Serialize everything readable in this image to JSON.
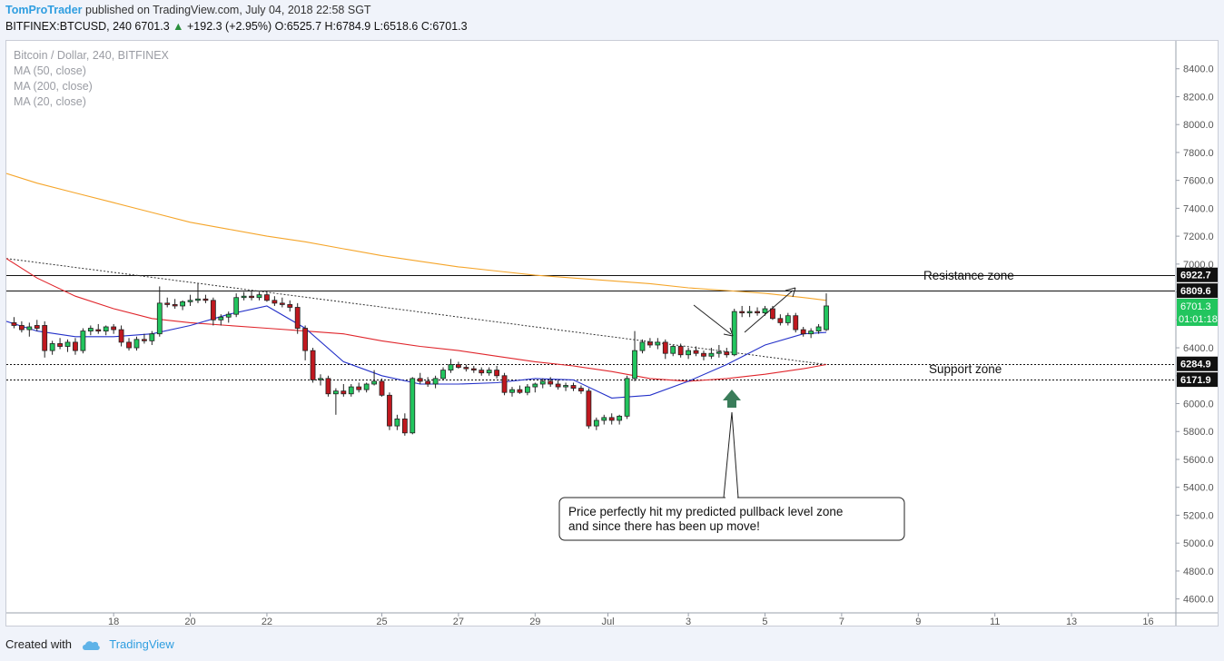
{
  "header": {
    "author": "TomProTrader",
    "published": "published on TradingView.com, July 04, 2018 22:58 SGT",
    "symbol": "BITFINEX:BTCUSD, 240",
    "last": "6701.3",
    "change": "+192.3 (+2.95%)",
    "ohlc": "O:6525.7 H:6784.9 L:6518.6 C:6701.3"
  },
  "legend": {
    "title": "Bitcoin / Dollar, 240, BITFINEX",
    "ma50": "MA (50, close)",
    "ma200": "MA (200, close)",
    "ma20": "MA (20, close)"
  },
  "footer": {
    "created": "Created with",
    "brand": "TradingView"
  },
  "annotations": {
    "resistance": "Resistance zone",
    "support": "Support zone",
    "callout_line1": "Price perfectly hit my predicted pullback level zone",
    "callout_line2": "and since there has been up move!"
  },
  "price_labels": {
    "resistance_top": "6922.7",
    "resistance_bottom": "6809.6",
    "last_price": "6701.3",
    "countdown": "01:01:18",
    "support_top": "6284.9",
    "support_bottom": "6171.9"
  },
  "colors": {
    "up": "#22c55e",
    "down": "#c0181f",
    "ma200": "#f5a52a",
    "ma50": "#e0262c",
    "ma20": "#2431c9",
    "arrow": "#3a7d5a"
  },
  "chart_data": {
    "type": "candlestick",
    "title": "Bitcoin / Dollar, 240, BITFINEX",
    "ylim": [
      4500,
      8600
    ],
    "y_ticks": [
      4600,
      4800,
      5000,
      5200,
      5400,
      5600,
      5800,
      6000,
      6200,
      6400,
      6600,
      6800,
      7000,
      7200,
      7400,
      7600,
      7800,
      8000,
      8200,
      8400
    ],
    "y_tick_labels": [
      "4600.0",
      "4800.0",
      "5000.0",
      "5200.0",
      "5400.0",
      "5600.0",
      "5800.0",
      "6000.0",
      "6200.0",
      "6400.0",
      "6600.0",
      "6800.0",
      "7000.0",
      "7200.0",
      "7400.0",
      "7600.0",
      "7800.0",
      "8000.0",
      "8200.0",
      "8400.0"
    ],
    "x_ticks": [
      18,
      20,
      22,
      25,
      27,
      29,
      30.9,
      33,
      35,
      37,
      39,
      41,
      43,
      45
    ],
    "x_tick_labels": [
      "18",
      "20",
      "22",
      "25",
      "27",
      "29",
      "Jul",
      "3",
      "5",
      "7",
      "9",
      "11",
      "13",
      "16"
    ],
    "xlim": [
      15.2,
      45.7
    ],
    "candles": [
      {
        "x": 15.4,
        "o": 6580,
        "h": 6620,
        "l": 6540,
        "c": 6560
      },
      {
        "x": 15.6,
        "o": 6560,
        "h": 6590,
        "l": 6510,
        "c": 6530
      },
      {
        "x": 15.8,
        "o": 6530,
        "h": 6580,
        "l": 6480,
        "c": 6550
      },
      {
        "x": 16.0,
        "o": 6560,
        "h": 6600,
        "l": 6520,
        "c": 6540
      },
      {
        "x": 16.2,
        "o": 6560,
        "h": 6590,
        "l": 6330,
        "c": 6380
      },
      {
        "x": 16.4,
        "o": 6380,
        "h": 6450,
        "l": 6350,
        "c": 6430
      },
      {
        "x": 16.6,
        "o": 6430,
        "h": 6470,
        "l": 6390,
        "c": 6410
      },
      {
        "x": 16.8,
        "o": 6410,
        "h": 6460,
        "l": 6370,
        "c": 6440
      },
      {
        "x": 17.0,
        "o": 6440,
        "h": 6470,
        "l": 6350,
        "c": 6380
      },
      {
        "x": 17.2,
        "o": 6380,
        "h": 6540,
        "l": 6360,
        "c": 6520
      },
      {
        "x": 17.4,
        "o": 6520,
        "h": 6560,
        "l": 6490,
        "c": 6540
      },
      {
        "x": 17.6,
        "o": 6530,
        "h": 6570,
        "l": 6500,
        "c": 6520
      },
      {
        "x": 17.8,
        "o": 6520,
        "h": 6560,
        "l": 6490,
        "c": 6550
      },
      {
        "x": 18.0,
        "o": 6550,
        "h": 6570,
        "l": 6500,
        "c": 6530
      },
      {
        "x": 18.2,
        "o": 6530,
        "h": 6560,
        "l": 6410,
        "c": 6440
      },
      {
        "x": 18.4,
        "o": 6440,
        "h": 6470,
        "l": 6380,
        "c": 6400
      },
      {
        "x": 18.6,
        "o": 6400,
        "h": 6480,
        "l": 6380,
        "c": 6460
      },
      {
        "x": 18.8,
        "o": 6460,
        "h": 6500,
        "l": 6430,
        "c": 6450
      },
      {
        "x": 19.0,
        "o": 6450,
        "h": 6520,
        "l": 6420,
        "c": 6500
      },
      {
        "x": 19.2,
        "o": 6500,
        "h": 6840,
        "l": 6480,
        "c": 6720
      },
      {
        "x": 19.4,
        "o": 6720,
        "h": 6760,
        "l": 6690,
        "c": 6710
      },
      {
        "x": 19.6,
        "o": 6710,
        "h": 6750,
        "l": 6680,
        "c": 6700
      },
      {
        "x": 19.8,
        "o": 6700,
        "h": 6740,
        "l": 6670,
        "c": 6730
      },
      {
        "x": 20.0,
        "o": 6730,
        "h": 6780,
        "l": 6700,
        "c": 6740
      },
      {
        "x": 20.2,
        "o": 6740,
        "h": 6860,
        "l": 6720,
        "c": 6750
      },
      {
        "x": 20.4,
        "o": 6750,
        "h": 6780,
        "l": 6720,
        "c": 6740
      },
      {
        "x": 20.6,
        "o": 6740,
        "h": 6760,
        "l": 6560,
        "c": 6600
      },
      {
        "x": 20.8,
        "o": 6600,
        "h": 6640,
        "l": 6560,
        "c": 6620
      },
      {
        "x": 21.0,
        "o": 6620,
        "h": 6660,
        "l": 6580,
        "c": 6640
      },
      {
        "x": 21.2,
        "o": 6640,
        "h": 6790,
        "l": 6620,
        "c": 6760
      },
      {
        "x": 21.4,
        "o": 6760,
        "h": 6800,
        "l": 6740,
        "c": 6770
      },
      {
        "x": 21.6,
        "o": 6770,
        "h": 6810,
        "l": 6740,
        "c": 6760
      },
      {
        "x": 21.8,
        "o": 6760,
        "h": 6800,
        "l": 6740,
        "c": 6780
      },
      {
        "x": 22.0,
        "o": 6780,
        "h": 6800,
        "l": 6730,
        "c": 6740
      },
      {
        "x": 22.2,
        "o": 6740,
        "h": 6770,
        "l": 6700,
        "c": 6720
      },
      {
        "x": 22.4,
        "o": 6720,
        "h": 6760,
        "l": 6690,
        "c": 6710
      },
      {
        "x": 22.6,
        "o": 6710,
        "h": 6740,
        "l": 6660,
        "c": 6690
      },
      {
        "x": 22.8,
        "o": 6690,
        "h": 6720,
        "l": 6500,
        "c": 6540
      },
      {
        "x": 23.0,
        "o": 6540,
        "h": 6560,
        "l": 6310,
        "c": 6380
      },
      {
        "x": 23.2,
        "o": 6380,
        "h": 6400,
        "l": 6150,
        "c": 6170
      },
      {
        "x": 23.4,
        "o": 6170,
        "h": 6210,
        "l": 6130,
        "c": 6180
      },
      {
        "x": 23.6,
        "o": 6180,
        "h": 6200,
        "l": 6050,
        "c": 6070
      },
      {
        "x": 23.8,
        "o": 6070,
        "h": 6110,
        "l": 5920,
        "c": 6090
      },
      {
        "x": 24.0,
        "o": 6090,
        "h": 6140,
        "l": 6050,
        "c": 6070
      },
      {
        "x": 24.2,
        "o": 6070,
        "h": 6140,
        "l": 6050,
        "c": 6120
      },
      {
        "x": 24.4,
        "o": 6120,
        "h": 6150,
        "l": 6080,
        "c": 6100
      },
      {
        "x": 24.6,
        "o": 6100,
        "h": 6150,
        "l": 6080,
        "c": 6140
      },
      {
        "x": 24.8,
        "o": 6140,
        "h": 6240,
        "l": 6130,
        "c": 6160
      },
      {
        "x": 25.0,
        "o": 6160,
        "h": 6180,
        "l": 6050,
        "c": 6060
      },
      {
        "x": 25.2,
        "o": 6060,
        "h": 6080,
        "l": 5810,
        "c": 5840
      },
      {
        "x": 25.4,
        "o": 5840,
        "h": 5920,
        "l": 5810,
        "c": 5890
      },
      {
        "x": 25.6,
        "o": 5890,
        "h": 5930,
        "l": 5770,
        "c": 5790
      },
      {
        "x": 25.8,
        "o": 5790,
        "h": 6190,
        "l": 5780,
        "c": 6180
      },
      {
        "x": 26.0,
        "o": 6180,
        "h": 6220,
        "l": 6140,
        "c": 6160
      },
      {
        "x": 26.2,
        "o": 6160,
        "h": 6190,
        "l": 6120,
        "c": 6140
      },
      {
        "x": 26.4,
        "o": 6140,
        "h": 6200,
        "l": 6110,
        "c": 6180
      },
      {
        "x": 26.6,
        "o": 6180,
        "h": 6260,
        "l": 6170,
        "c": 6240
      },
      {
        "x": 26.8,
        "o": 6240,
        "h": 6320,
        "l": 6220,
        "c": 6280
      },
      {
        "x": 27.0,
        "o": 6280,
        "h": 6300,
        "l": 6250,
        "c": 6260
      },
      {
        "x": 27.2,
        "o": 6260,
        "h": 6280,
        "l": 6230,
        "c": 6250
      },
      {
        "x": 27.4,
        "o": 6250,
        "h": 6270,
        "l": 6220,
        "c": 6240
      },
      {
        "x": 27.6,
        "o": 6240,
        "h": 6260,
        "l": 6200,
        "c": 6220
      },
      {
        "x": 27.8,
        "o": 6220,
        "h": 6260,
        "l": 6200,
        "c": 6240
      },
      {
        "x": 28.0,
        "o": 6240,
        "h": 6270,
        "l": 6180,
        "c": 6200
      },
      {
        "x": 28.2,
        "o": 6200,
        "h": 6220,
        "l": 6060,
        "c": 6080
      },
      {
        "x": 28.4,
        "o": 6080,
        "h": 6120,
        "l": 6050,
        "c": 6100
      },
      {
        "x": 28.6,
        "o": 6100,
        "h": 6130,
        "l": 6070,
        "c": 6080
      },
      {
        "x": 28.8,
        "o": 6080,
        "h": 6140,
        "l": 6060,
        "c": 6120
      },
      {
        "x": 29.0,
        "o": 6120,
        "h": 6150,
        "l": 6080,
        "c": 6140
      },
      {
        "x": 29.2,
        "o": 6140,
        "h": 6180,
        "l": 6110,
        "c": 6160
      },
      {
        "x": 29.4,
        "o": 6160,
        "h": 6190,
        "l": 6120,
        "c": 6140
      },
      {
        "x": 29.6,
        "o": 6140,
        "h": 6170,
        "l": 6100,
        "c": 6120
      },
      {
        "x": 29.8,
        "o": 6120,
        "h": 6150,
        "l": 6090,
        "c": 6130
      },
      {
        "x": 30.0,
        "o": 6130,
        "h": 6150,
        "l": 6090,
        "c": 6110
      },
      {
        "x": 30.2,
        "o": 6110,
        "h": 6130,
        "l": 6070,
        "c": 6090
      },
      {
        "x": 30.4,
        "o": 6090,
        "h": 6110,
        "l": 5820,
        "c": 5840
      },
      {
        "x": 30.6,
        "o": 5840,
        "h": 5900,
        "l": 5810,
        "c": 5880
      },
      {
        "x": 30.8,
        "o": 5880,
        "h": 5920,
        "l": 5850,
        "c": 5900
      },
      {
        "x": 31.0,
        "o": 5900,
        "h": 5930,
        "l": 5850,
        "c": 5880
      },
      {
        "x": 31.2,
        "o": 5880,
        "h": 5920,
        "l": 5850,
        "c": 5910
      },
      {
        "x": 31.4,
        "o": 5910,
        "h": 6200,
        "l": 5890,
        "c": 6180
      },
      {
        "x": 31.6,
        "o": 6180,
        "h": 6520,
        "l": 6160,
        "c": 6380
      },
      {
        "x": 31.8,
        "o": 6380,
        "h": 6460,
        "l": 6360,
        "c": 6440
      },
      {
        "x": 32.0,
        "o": 6440,
        "h": 6470,
        "l": 6400,
        "c": 6420
      },
      {
        "x": 32.2,
        "o": 6420,
        "h": 6470,
        "l": 6390,
        "c": 6440
      },
      {
        "x": 32.4,
        "o": 6440,
        "h": 6460,
        "l": 6320,
        "c": 6360
      },
      {
        "x": 32.6,
        "o": 6360,
        "h": 6420,
        "l": 6340,
        "c": 6410
      },
      {
        "x": 32.8,
        "o": 6410,
        "h": 6430,
        "l": 6330,
        "c": 6350
      },
      {
        "x": 33.0,
        "o": 6350,
        "h": 6400,
        "l": 6320,
        "c": 6380
      },
      {
        "x": 33.2,
        "o": 6380,
        "h": 6410,
        "l": 6340,
        "c": 6360
      },
      {
        "x": 33.4,
        "o": 6360,
        "h": 6380,
        "l": 6310,
        "c": 6340
      },
      {
        "x": 33.6,
        "o": 6340,
        "h": 6400,
        "l": 6320,
        "c": 6360
      },
      {
        "x": 33.8,
        "o": 6360,
        "h": 6420,
        "l": 6330,
        "c": 6370
      },
      {
        "x": 34.0,
        "o": 6370,
        "h": 6400,
        "l": 6330,
        "c": 6350
      },
      {
        "x": 34.2,
        "o": 6350,
        "h": 6680,
        "l": 6340,
        "c": 6660
      },
      {
        "x": 34.4,
        "o": 6660,
        "h": 6700,
        "l": 6620,
        "c": 6650
      },
      {
        "x": 34.6,
        "o": 6650,
        "h": 6700,
        "l": 6620,
        "c": 6660
      },
      {
        "x": 34.8,
        "o": 6660,
        "h": 6690,
        "l": 6630,
        "c": 6650
      },
      {
        "x": 35.0,
        "o": 6650,
        "h": 6700,
        "l": 6630,
        "c": 6680
      },
      {
        "x": 35.2,
        "o": 6680,
        "h": 6700,
        "l": 6600,
        "c": 6610
      },
      {
        "x": 35.4,
        "o": 6610,
        "h": 6640,
        "l": 6560,
        "c": 6580
      },
      {
        "x": 35.6,
        "o": 6580,
        "h": 6650,
        "l": 6560,
        "c": 6630
      },
      {
        "x": 35.8,
        "o": 6630,
        "h": 6650,
        "l": 6510,
        "c": 6530
      },
      {
        "x": 36.0,
        "o": 6530,
        "h": 6550,
        "l": 6480,
        "c": 6500
      },
      {
        "x": 36.2,
        "o": 6500,
        "h": 6540,
        "l": 6470,
        "c": 6520
      },
      {
        "x": 36.4,
        "o": 6520,
        "h": 6570,
        "l": 6500,
        "c": 6550
      },
      {
        "x": 36.6,
        "o": 6530,
        "h": 6790,
        "l": 6520,
        "c": 6700
      }
    ],
    "series": [
      {
        "name": "MA (200, close)",
        "color": "#f5a52a",
        "x": [
          15.2,
          16,
          17,
          18,
          19,
          20,
          21,
          22,
          23,
          24,
          25,
          26,
          27,
          28,
          29,
          30,
          31,
          32,
          33,
          34,
          35,
          36,
          36.6
        ],
        "values": [
          7650,
          7580,
          7510,
          7440,
          7370,
          7300,
          7250,
          7200,
          7160,
          7110,
          7060,
          7020,
          6980,
          6950,
          6920,
          6900,
          6880,
          6860,
          6830,
          6810,
          6790,
          6760,
          6740
        ]
      },
      {
        "name": "MA (50, close)",
        "color": "#e0262c",
        "x": [
          15.2,
          16,
          17,
          18,
          19,
          20,
          21,
          22,
          23,
          24,
          25,
          26,
          27,
          28,
          29,
          30,
          31,
          32,
          33,
          34,
          35,
          36,
          36.6
        ],
        "values": [
          7040,
          6900,
          6770,
          6680,
          6610,
          6580,
          6560,
          6540,
          6520,
          6500,
          6450,
          6410,
          6380,
          6340,
          6300,
          6270,
          6230,
          6180,
          6160,
          6180,
          6210,
          6250,
          6280
        ]
      },
      {
        "name": "MA (20, close)",
        "color": "#2431c9",
        "x": [
          15.2,
          16,
          17,
          18,
          19,
          20,
          21,
          22,
          23,
          24,
          25,
          26,
          27,
          28,
          29,
          30,
          31,
          32,
          33,
          34,
          35,
          36,
          36.6
        ],
        "values": [
          6590,
          6520,
          6480,
          6480,
          6500,
          6560,
          6640,
          6700,
          6540,
          6300,
          6200,
          6140,
          6140,
          6150,
          6180,
          6170,
          6040,
          6060,
          6160,
          6280,
          6420,
          6500,
          6510
        ]
      }
    ],
    "trendline": {
      "x": [
        15.2,
        36.6
      ],
      "values": [
        7040,
        6280
      ]
    },
    "levels": [
      6922.7,
      6809.6,
      6284.9,
      6171.9
    ]
  }
}
